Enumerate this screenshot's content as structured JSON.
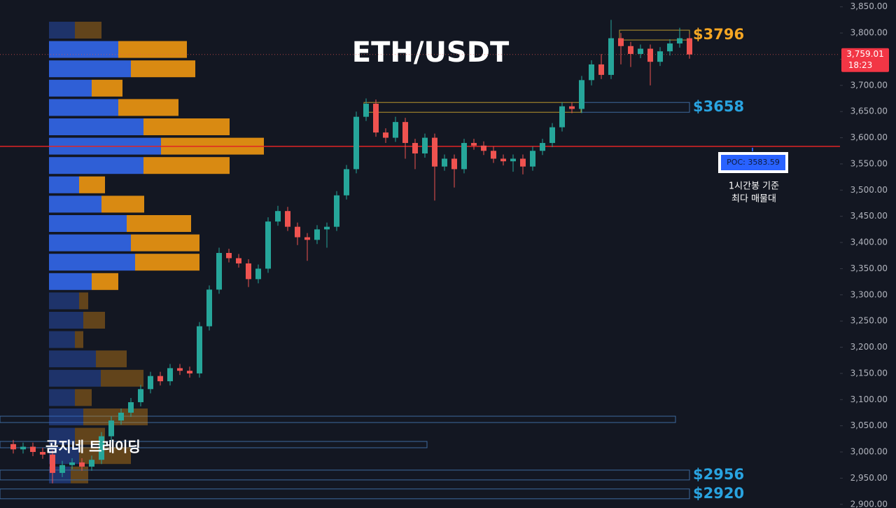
{
  "chart_data": {
    "type": "candlestick",
    "title": "ETH/USDT",
    "watermark": "곰지네 트레이딩",
    "ylim": [
      2893,
      3863
    ],
    "yticks": [
      {
        "value": 2900,
        "label": "2,900.00"
      },
      {
        "value": 2950,
        "label": "2,950.00"
      },
      {
        "value": 3000,
        "label": "3,000.00"
      },
      {
        "value": 3050,
        "label": "3,050.00"
      },
      {
        "value": 3100,
        "label": "3,100.00"
      },
      {
        "value": 3150,
        "label": "3,150.00"
      },
      {
        "value": 3200,
        "label": "3,200.00"
      },
      {
        "value": 3250,
        "label": "3,250.00"
      },
      {
        "value": 3300,
        "label": "3,300.00"
      },
      {
        "value": 3350,
        "label": "3,350.00"
      },
      {
        "value": 3400,
        "label": "3,400.00"
      },
      {
        "value": 3450,
        "label": "3,450.00"
      },
      {
        "value": 3500,
        "label": "3,500.00"
      },
      {
        "value": 3550,
        "label": "3,550.00"
      },
      {
        "value": 3600,
        "label": "3,600.00"
      },
      {
        "value": 3650,
        "label": "3,650.00"
      },
      {
        "value": 3700,
        "label": "3,700.00"
      },
      {
        "value": 3750,
        "label": "3,750.00"
      },
      {
        "value": 3800,
        "label": "3,800.00"
      },
      {
        "value": 3850,
        "label": "3,850.00"
      }
    ],
    "up_color": "#26a69a",
    "down_color": "#ef5350",
    "open": [
      3015,
      3005,
      3010,
      3000,
      2995,
      2960,
      2975,
      2980,
      2972,
      2985,
      3030,
      3060,
      3075,
      3095,
      3120,
      3145,
      3135,
      3160,
      3155,
      3150,
      3240,
      3310,
      3380,
      3370,
      3360,
      3330,
      3350,
      3440,
      3460,
      3430,
      3410,
      3405,
      3425,
      3430,
      3490,
      3540,
      3640,
      3665,
      3610,
      3600,
      3630,
      3590,
      3570,
      3600,
      3545,
      3560,
      3540,
      3590,
      3585,
      3575,
      3560,
      3555,
      3560,
      3545,
      3575,
      3590,
      3620,
      3660,
      3655,
      3710,
      3740,
      3720,
      3790,
      3775,
      3760,
      3770,
      3745,
      3765,
      3780,
      3790
    ],
    "high": [
      3023,
      3018,
      3018,
      3008,
      3003,
      2983,
      2988,
      2988,
      2993,
      3038,
      3068,
      3083,
      3103,
      3128,
      3153,
      3153,
      3168,
      3168,
      3163,
      3248,
      3318,
      3390,
      3388,
      3378,
      3368,
      3358,
      3448,
      3470,
      3468,
      3438,
      3418,
      3433,
      3438,
      3498,
      3548,
      3650,
      3675,
      3673,
      3618,
      3640,
      3638,
      3598,
      3608,
      3608,
      3568,
      3568,
      3598,
      3598,
      3593,
      3583,
      3568,
      3568,
      3568,
      3583,
      3598,
      3628,
      3668,
      3668,
      3718,
      3748,
      3760,
      3825,
      3800,
      3783,
      3778,
      3778,
      3773,
      3788,
      3810,
      3798
    ],
    "low": [
      2997,
      2997,
      2992,
      2987,
      2940,
      2952,
      2967,
      2964,
      2964,
      2977,
      3022,
      3052,
      3067,
      3087,
      3112,
      3127,
      3127,
      3147,
      3142,
      3142,
      3232,
      3302,
      3362,
      3352,
      3315,
      3322,
      3342,
      3432,
      3422,
      3395,
      3365,
      3397,
      3390,
      3422,
      3482,
      3532,
      3632,
      3602,
      3590,
      3592,
      3560,
      3540,
      3562,
      3480,
      3537,
      3505,
      3532,
      3577,
      3567,
      3552,
      3547,
      3535,
      3530,
      3537,
      3567,
      3582,
      3612,
      3647,
      3647,
      3700,
      3712,
      3712,
      3740,
      3735,
      3752,
      3700,
      3737,
      3757,
      3772,
      3751
    ],
    "close": [
      3005,
      3010,
      3000,
      2995,
      2960,
      2975,
      2980,
      2972,
      2985,
      3030,
      3060,
      3075,
      3095,
      3120,
      3145,
      3135,
      3160,
      3155,
      3150,
      3240,
      3310,
      3380,
      3370,
      3360,
      3330,
      3350,
      3440,
      3460,
      3430,
      3410,
      3405,
      3425,
      3430,
      3490,
      3540,
      3640,
      3665,
      3610,
      3600,
      3630,
      3590,
      3570,
      3600,
      3545,
      3560,
      3540,
      3590,
      3585,
      3575,
      3560,
      3555,
      3560,
      3545,
      3575,
      3590,
      3620,
      3660,
      3655,
      3710,
      3740,
      3720,
      3790,
      3775,
      3760,
      3770,
      3745,
      3765,
      3780,
      3790,
      3759.01
    ],
    "profile": {
      "buy_color": "#2f5fd6",
      "sell_color": "#d98a12",
      "value_area": {
        "from": 1,
        "to": 13
      },
      "buy": [
        37,
        99,
        117,
        61,
        99,
        135,
        160,
        135,
        43,
        75,
        111,
        117,
        123,
        61,
        43,
        49,
        37,
        67,
        74,
        37,
        49,
        37,
        43,
        31
      ],
      "sell": [
        38,
        98,
        92,
        44,
        86,
        123,
        147,
        123,
        37,
        61,
        92,
        98,
        92,
        38,
        13,
        31,
        12,
        44,
        61,
        24,
        92,
        43,
        74,
        25
      ]
    },
    "levels": [
      {
        "value": 3796,
        "label": "$3796",
        "color": "#f5a623"
      },
      {
        "value": 3658,
        "label": "$3658",
        "color": "#29a3e0"
      },
      {
        "value": 2956,
        "label": "$2956",
        "color": "#29a3e0"
      },
      {
        "value": 2920,
        "label": "$2920",
        "color": "#29a3e0"
      }
    ],
    "poc": {
      "value": 3583.59,
      "label": "POC: 3583.59",
      "color": "#e02424"
    },
    "poc_note": [
      "1시간봉 기준",
      "최다 매물대"
    ],
    "last_price": {
      "value": 3759.01,
      "label": "3,759.01"
    },
    "countdown": "18:23"
  }
}
